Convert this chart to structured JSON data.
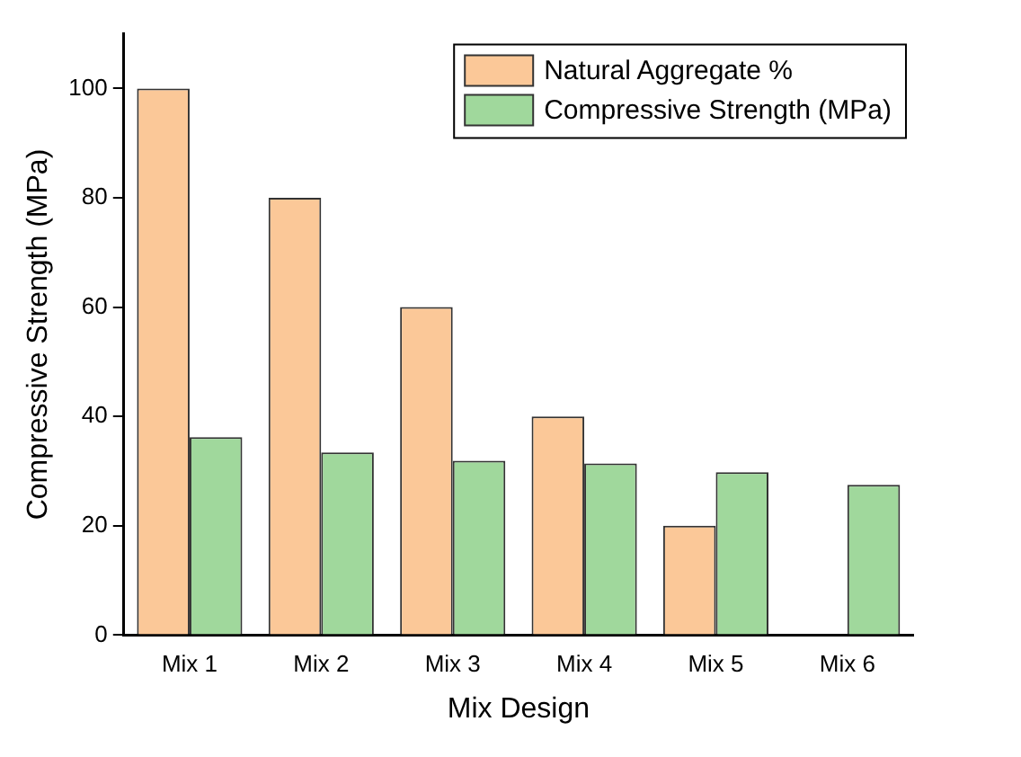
{
  "chart_data": {
    "type": "bar",
    "xlabel": "Mix Design",
    "ylabel": "Compressive Strength (MPa)",
    "categories": [
      "Mix 1",
      "Mix 2",
      "Mix 3",
      "Mix 4",
      "Mix 5",
      "Mix 6"
    ],
    "series": [
      {
        "name": "Natural Aggregate %",
        "color": "#fbc898",
        "values": [
          100,
          80,
          60,
          40,
          20,
          0
        ]
      },
      {
        "name": "Compressive Strength (MPa)",
        "color": "#a0d89c",
        "values": [
          36.2,
          33.4,
          31.9,
          31.4,
          29.8,
          27.5
        ]
      }
    ],
    "ylim": [
      0,
      110
    ],
    "yticks": [
      0,
      20,
      40,
      60,
      80,
      100
    ],
    "grid": false,
    "legend": "top right"
  }
}
